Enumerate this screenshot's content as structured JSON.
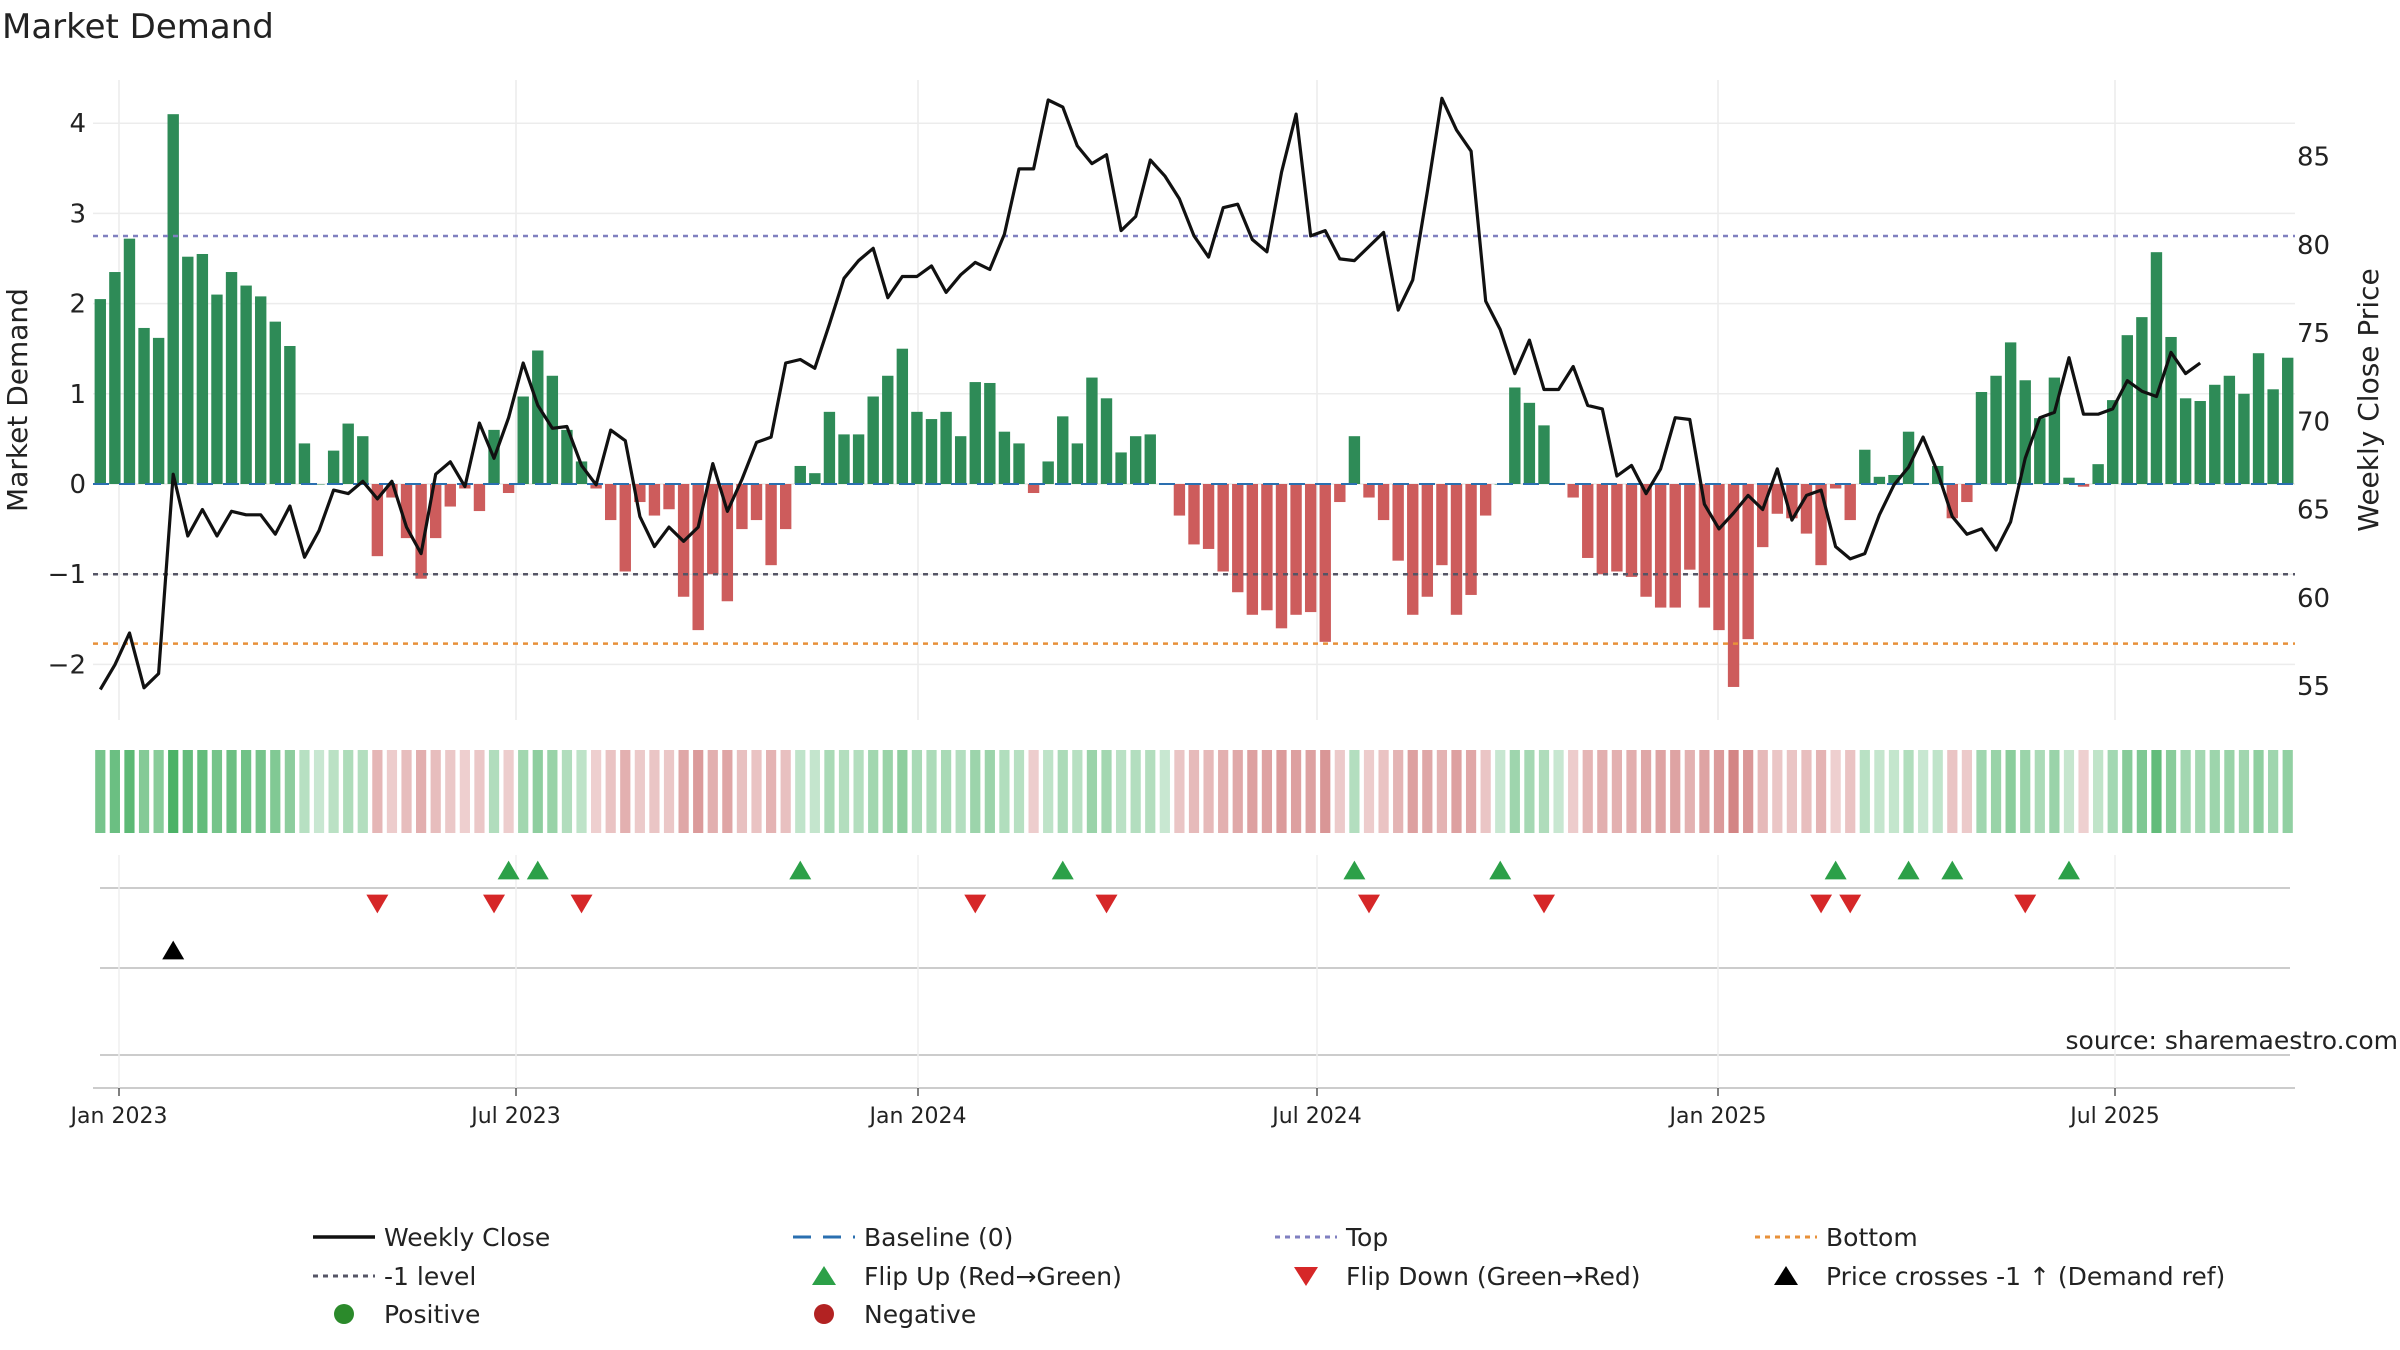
{
  "chart_data": {
    "type": "bar",
    "title": "Market Demand",
    "ylabel_left": "Market Demand",
    "ylabel_right": "Weekly Close Price",
    "source": "source: sharemaestro.com",
    "y_left_ticks": [
      "4",
      "3",
      "2",
      "1",
      "0",
      "−1",
      "−2"
    ],
    "y_right_ticks": [
      "85",
      "80",
      "75",
      "70",
      "65",
      "60",
      "55"
    ],
    "x_tick_labels": [
      "Jan 2023",
      "Jul 2023",
      "Jan 2024",
      "Jul 2024",
      "Jan 2025",
      "Jul 2025"
    ],
    "y_left_range": [
      -2.5,
      4.3
    ],
    "y_right_range": [
      53.5,
      88.3
    ],
    "levels": {
      "top": 2.75,
      "minus_one": -1.0,
      "bottom": -1.77,
      "baseline": 0
    },
    "demand": [
      2.05,
      2.35,
      2.72,
      1.73,
      1.62,
      4.1,
      2.52,
      2.55,
      2.1,
      2.35,
      2.2,
      2.08,
      1.8,
      1.53,
      0.45,
      0.0,
      0.37,
      0.67,
      0.53,
      -0.8,
      -0.15,
      -0.6,
      -1.05,
      -0.6,
      -0.25,
      -0.05,
      -0.3,
      0.6,
      -0.1,
      0.97,
      1.48,
      1.2,
      0.6,
      0.25,
      -0.05,
      -0.4,
      -0.97,
      -0.2,
      -0.35,
      -0.28,
      -1.25,
      -1.62,
      -1.0,
      -1.3,
      -0.5,
      -0.4,
      -0.9,
      -0.5,
      0.2,
      0.12,
      0.8,
      0.55,
      0.55,
      0.97,
      1.2,
      1.5,
      0.8,
      0.72,
      0.8,
      0.53,
      1.13,
      1.12,
      0.58,
      0.45,
      -0.1,
      0.25,
      0.75,
      0.45,
      1.18,
      0.95,
      0.35,
      0.53,
      0.55,
      0.0,
      -0.35,
      -0.67,
      -0.72,
      -0.97,
      -1.2,
      -1.45,
      -1.4,
      -1.6,
      -1.45,
      -1.42,
      -1.75,
      -0.2,
      0.53,
      -0.15,
      -0.4,
      -0.85,
      -1.45,
      -1.25,
      -0.9,
      -1.45,
      -1.23,
      -0.35,
      0.0,
      1.07,
      0.9,
      0.65,
      0.0,
      -0.15,
      -0.82,
      -1.0,
      -0.97,
      -1.03,
      -1.25,
      -1.37,
      -1.37,
      -0.95,
      -1.37,
      -1.62,
      -2.25,
      -1.72,
      -0.7,
      -0.33,
      -0.38,
      -0.55,
      -0.9,
      -0.05,
      -0.4,
      0.38,
      0.08,
      0.1,
      0.58,
      0.0,
      0.2,
      -0.38,
      -0.2,
      1.02,
      1.2,
      1.57,
      1.15,
      0.73,
      1.18,
      0.07,
      -0.03,
      0.22,
      0.93,
      1.65,
      1.85,
      2.57,
      1.63,
      0.95,
      0.92,
      1.1,
      1.2,
      1.0,
      1.45,
      1.05,
      1.4
    ],
    "weekly_close": [
      54.8,
      56.2,
      58.0,
      54.9,
      55.7,
      67.0,
      63.5,
      65.0,
      63.5,
      64.9,
      64.7,
      64.7,
      63.6,
      65.2,
      62.3,
      63.8,
      66.1,
      65.9,
      66.6,
      65.6,
      66.6,
      64.0,
      62.5,
      67.0,
      67.7,
      66.3,
      69.9,
      67.9,
      70.2,
      73.3,
      70.9,
      69.6,
      69.7,
      67.5,
      66.4,
      69.5,
      68.9,
      64.6,
      62.9,
      64.0,
      63.2,
      64.0,
      67.6,
      64.9,
      66.7,
      68.8,
      69.1,
      73.3,
      73.5,
      73.0,
      75.5,
      78.1,
      79.1,
      79.8,
      77.0,
      78.2,
      78.2,
      78.8,
      77.3,
      78.3,
      79.0,
      78.6,
      80.6,
      84.3,
      84.3,
      88.2,
      87.8,
      85.6,
      84.6,
      85.1,
      80.8,
      81.6,
      84.8,
      83.9,
      82.6,
      80.5,
      79.3,
      82.1,
      82.3,
      80.3,
      79.6,
      84.1,
      87.4,
      80.5,
      80.8,
      79.2,
      79.1,
      79.9,
      80.7,
      76.3,
      78.0,
      83.0,
      88.3,
      86.5,
      85.3,
      76.8,
      75.2,
      72.7,
      74.6,
      71.8,
      71.8,
      73.1,
      70.9,
      70.7,
      66.9,
      67.5,
      65.9,
      67.3,
      70.2,
      70.1,
      65.3,
      63.9,
      64.8,
      65.8,
      65.0,
      67.3,
      64.4,
      65.8,
      66.1,
      62.9,
      62.2,
      62.5,
      64.7,
      66.4,
      67.4,
      69.1,
      67.1,
      64.6,
      63.6,
      63.9,
      62.7,
      64.3,
      67.9,
      70.2,
      70.5,
      73.6,
      70.4,
      70.4,
      70.7,
      72.3,
      71.7,
      71.4,
      73.9,
      72.7,
      73.3
    ],
    "flip_up": [
      28,
      30,
      48,
      66,
      86,
      96,
      119,
      124,
      127,
      135
    ],
    "flip_down": [
      19,
      27,
      33,
      60,
      69,
      87,
      99,
      118,
      120,
      132
    ],
    "price_cross": [
      5
    ],
    "legend": [
      {
        "label": "Weekly Close"
      },
      {
        "label": "Baseline (0)"
      },
      {
        "label": "Top"
      },
      {
        "label": "Bottom"
      },
      {
        "label": "-1 level"
      },
      {
        "label": "Flip Up (Red→Green)"
      },
      {
        "label": "Flip Down (Green→Red)"
      },
      {
        "label": "Price crosses -1 ↑ (Demand ref)"
      },
      {
        "label": "Positive"
      },
      {
        "label": "Negative"
      }
    ],
    "colors": {
      "positive": "#2e8b57",
      "negative": "#cd5c5c",
      "line": "#111111",
      "top": "#8080c0",
      "minus_one": "#555566",
      "bottom": "#e8913a",
      "baseline": "#2a6fb0",
      "flip_up": "#2ca048",
      "flip_down": "#d62728",
      "cross": "#000000",
      "legend_positive": "#2b8a2b",
      "legend_negative": "#b22222"
    }
  }
}
